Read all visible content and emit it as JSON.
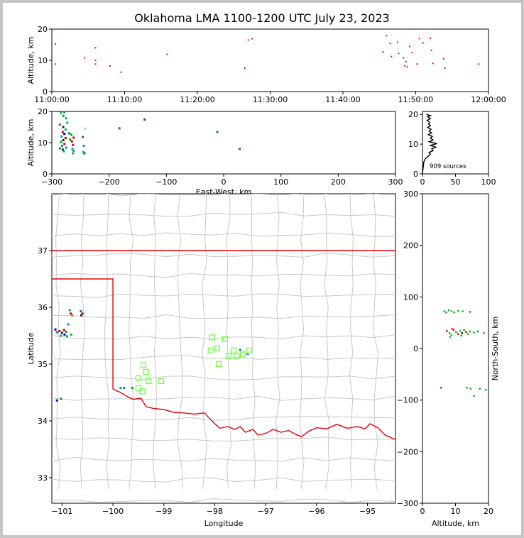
{
  "title": "Oklahoma LMA 1100-1200 UTC July 23, 2023",
  "colors": {
    "state_border": "#e8000b",
    "county_lines": "#c8c8c8",
    "station": "#66ff33",
    "histogram": "#000000"
  },
  "chart_data": [
    {
      "id": "time-altitude",
      "type": "scatter",
      "ylabel": "Altitude, km",
      "xlim": [
        "11:00:00",
        "12:00:00"
      ],
      "ylim": [
        0,
        20
      ],
      "xticks": [
        "11:00:00",
        "11:10:00",
        "11:20:00",
        "11:30:00",
        "11:40:00",
        "11:50:00",
        "12:00:00"
      ],
      "yticks": [
        "0",
        "10",
        "20"
      ],
      "points": [
        {
          "t": "11:00:30",
          "alt": 15.2,
          "color": "#e0007a"
        },
        {
          "t": "11:00:30",
          "alt": 8.8,
          "color": "#e0007a"
        },
        {
          "t": "11:04:30",
          "alt": 10.8,
          "color": "#e0007a"
        },
        {
          "t": "11:06:00",
          "alt": 14.0,
          "color": "#e0007a"
        },
        {
          "t": "11:06:00",
          "alt": 10.0,
          "color": "#e0007a"
        },
        {
          "t": "11:06:00",
          "alt": 8.8,
          "color": "#e0007a"
        },
        {
          "t": "11:08:00",
          "alt": 8.2,
          "color": "#e0007a"
        },
        {
          "t": "11:09:30",
          "alt": 6.2,
          "color": "#e0007a"
        },
        {
          "t": "11:15:50",
          "alt": 11.9,
          "color": "#e0007a"
        },
        {
          "t": "11:26:30",
          "alt": 7.5,
          "color": "#e0007a"
        },
        {
          "t": "11:27:00",
          "alt": 16.5,
          "color": "#e0007a"
        },
        {
          "t": "11:27:30",
          "alt": 16.9,
          "color": "#e0007a"
        },
        {
          "t": "11:45:30",
          "alt": 12.7,
          "color": "#e0007a"
        },
        {
          "t": "11:46:00",
          "alt": 17.9,
          "color": "#e0007a"
        },
        {
          "t": "11:46:30",
          "alt": 15.4,
          "color": "#e0007a"
        },
        {
          "t": "11:46:40",
          "alt": 11.2,
          "color": "#e0007a"
        },
        {
          "t": "11:47:30",
          "alt": 15.8,
          "color": "#e0007a"
        },
        {
          "t": "11:47:40",
          "alt": 12.2,
          "color": "#e0007a"
        },
        {
          "t": "11:48:20",
          "alt": 10.8,
          "color": "#e0007a"
        },
        {
          "t": "11:48:30",
          "alt": 8.2,
          "color": "#e0007a"
        },
        {
          "t": "11:48:40",
          "alt": 9.6,
          "color": "#e0007a"
        },
        {
          "t": "11:48:50",
          "alt": 7.9,
          "color": "#e0007a"
        },
        {
          "t": "11:49:10",
          "alt": 14.4,
          "color": "#e0007a"
        },
        {
          "t": "11:49:30",
          "alt": 12.5,
          "color": "#e0007a"
        },
        {
          "t": "11:50:10",
          "alt": 8.8,
          "color": "#e0007a"
        },
        {
          "t": "11:50:30",
          "alt": 17.0,
          "color": "#e0007a"
        },
        {
          "t": "11:51:00",
          "alt": 15.6,
          "color": "#e0007a"
        },
        {
          "t": "11:52:00",
          "alt": 17.1,
          "color": "#e0007a"
        },
        {
          "t": "11:52:10",
          "alt": 13.2,
          "color": "#e0007a"
        },
        {
          "t": "11:52:20",
          "alt": 9.0,
          "color": "#e0007a"
        },
        {
          "t": "11:53:50",
          "alt": 10.5,
          "color": "#e0007a"
        },
        {
          "t": "11:54:00",
          "alt": 7.5,
          "color": "#e0007a"
        },
        {
          "t": "11:58:40",
          "alt": 8.8,
          "color": "#e0007a"
        }
      ]
    },
    {
      "id": "east-west-altitude",
      "type": "scatter",
      "xlabel": "East-West, km",
      "ylabel": "Altitude, km",
      "xlim": [
        -300,
        300
      ],
      "ylim": [
        0,
        20
      ],
      "xticks": [
        "-300",
        "-200",
        "-100",
        "0",
        "100",
        "200",
        "300"
      ],
      "yticks": [
        "0",
        "10",
        "20"
      ],
      "points": [
        {
          "x": -284,
          "alt": 19.5,
          "color": "#00b050"
        },
        {
          "x": -280,
          "alt": 18.6,
          "color": "#00a000"
        },
        {
          "x": -278,
          "alt": 19.8,
          "color": "#008070"
        },
        {
          "x": -275,
          "alt": 17.8,
          "color": "#0090c0"
        },
        {
          "x": -273,
          "alt": 16.4,
          "color": "#00a050"
        },
        {
          "x": -286,
          "alt": 15.8,
          "color": "#008080"
        },
        {
          "x": -280,
          "alt": 15.0,
          "color": "#202020"
        },
        {
          "x": -276,
          "alt": 14.2,
          "color": "#00b050"
        },
        {
          "x": -281,
          "alt": 13.4,
          "color": "#d00000"
        },
        {
          "x": -278,
          "alt": 12.8,
          "color": "#0000c0"
        },
        {
          "x": -283,
          "alt": 12.0,
          "color": "#00a0a0"
        },
        {
          "x": -276,
          "alt": 11.5,
          "color": "#c00000"
        },
        {
          "x": -280,
          "alt": 10.8,
          "color": "#202020"
        },
        {
          "x": -284,
          "alt": 10.2,
          "color": "#00a000"
        },
        {
          "x": -278,
          "alt": 9.6,
          "color": "#d00000"
        },
        {
          "x": -282,
          "alt": 9.0,
          "color": "#008080"
        },
        {
          "x": -275,
          "alt": 8.4,
          "color": "#00b050"
        },
        {
          "x": -281,
          "alt": 7.8,
          "color": "#202020"
        },
        {
          "x": -279,
          "alt": 7.2,
          "color": "#00a0a0"
        },
        {
          "x": -286,
          "alt": 8.2,
          "color": "#00a000"
        },
        {
          "x": -270,
          "alt": 13.0,
          "color": "#008080"
        },
        {
          "x": -268,
          "alt": 11.0,
          "color": "#00a000"
        },
        {
          "x": -265,
          "alt": 10.4,
          "color": "#d00000"
        },
        {
          "x": -263,
          "alt": 9.2,
          "color": "#e0007a"
        },
        {
          "x": -264,
          "alt": 8.0,
          "color": "#00a0a0"
        },
        {
          "x": -262,
          "alt": 11.6,
          "color": "#d00000"
        },
        {
          "x": -266,
          "alt": 12.6,
          "color": "#00a000"
        },
        {
          "x": -262,
          "alt": 7.4,
          "color": "#00b050"
        },
        {
          "x": -263,
          "alt": 6.6,
          "color": "#00a0a0"
        },
        {
          "x": -246,
          "alt": 11.8,
          "color": "#008080"
        },
        {
          "x": -244,
          "alt": 9.0,
          "color": "#0090c0"
        },
        {
          "x": -243,
          "alt": 6.6,
          "color": "#006060"
        },
        {
          "x": -245,
          "alt": 7.0,
          "color": "#00a0a0"
        },
        {
          "x": -242,
          "alt": 14.5,
          "color": "#c0c0c0"
        },
        {
          "x": -182,
          "alt": 14.6,
          "color": "#007070"
        },
        {
          "x": -138,
          "alt": 17.4,
          "color": "#006060"
        },
        {
          "x": -11,
          "alt": 13.4,
          "color": "#008070"
        },
        {
          "x": 28,
          "alt": 8.0,
          "color": "#007070"
        }
      ]
    },
    {
      "id": "altitude-histogram",
      "type": "line",
      "annotation": "909 sources",
      "xlim": [
        0,
        100
      ],
      "ylim": [
        0,
        21
      ],
      "xticks": [
        "0",
        "50",
        "100"
      ],
      "yticks": [
        "0",
        "10",
        "20"
      ],
      "points": [
        {
          "count": 0,
          "alt": 0
        },
        {
          "count": 1,
          "alt": 2
        },
        {
          "count": 2,
          "alt": 4
        },
        {
          "count": 4,
          "alt": 5
        },
        {
          "count": 8,
          "alt": 5.8
        },
        {
          "count": 12,
          "alt": 6.6
        },
        {
          "count": 10,
          "alt": 7.2
        },
        {
          "count": 16,
          "alt": 7.8
        },
        {
          "count": 14,
          "alt": 8.4
        },
        {
          "count": 20,
          "alt": 9.0
        },
        {
          "count": 12,
          "alt": 9.6
        },
        {
          "count": 22,
          "alt": 10.2
        },
        {
          "count": 10,
          "alt": 10.8
        },
        {
          "count": 16,
          "alt": 11.4
        },
        {
          "count": 12,
          "alt": 12.0
        },
        {
          "count": 15,
          "alt": 12.6
        },
        {
          "count": 9,
          "alt": 13.2
        },
        {
          "count": 14,
          "alt": 13.8
        },
        {
          "count": 10,
          "alt": 14.4
        },
        {
          "count": 13,
          "alt": 15.0
        },
        {
          "count": 8,
          "alt": 15.6
        },
        {
          "count": 12,
          "alt": 16.2
        },
        {
          "count": 9,
          "alt": 16.8
        },
        {
          "count": 11,
          "alt": 17.4
        },
        {
          "count": 7,
          "alt": 18.0
        },
        {
          "count": 12,
          "alt": 18.6
        },
        {
          "count": 8,
          "alt": 19.2
        },
        {
          "count": 12,
          "alt": 19.6
        },
        {
          "count": 6,
          "alt": 20.0
        }
      ]
    },
    {
      "id": "plan-view",
      "type": "scatter",
      "xlabel": "Longitude",
      "ylabel": "Latitude",
      "xlim": [
        -101.2,
        -94.45
      ],
      "ylim": [
        32.55,
        38.0
      ],
      "xticks": [
        "−101",
        "−100",
        "−99",
        "−98",
        "−97",
        "−96",
        "−95"
      ],
      "yticks": [
        "33",
        "34",
        "35",
        "36",
        "37"
      ],
      "stations": [
        {
          "lon": -98.05,
          "lat": 35.47
        },
        {
          "lon": -97.8,
          "lat": 35.44
        },
        {
          "lon": -97.95,
          "lat": 35.28
        },
        {
          "lon": -98.08,
          "lat": 35.24
        },
        {
          "lon": -97.63,
          "lat": 35.24
        },
        {
          "lon": -97.73,
          "lat": 35.14
        },
        {
          "lon": -97.45,
          "lat": 35.17
        },
        {
          "lon": -97.32,
          "lat": 35.24
        },
        {
          "lon": -97.92,
          "lat": 35.0
        },
        {
          "lon": -97.57,
          "lat": 35.14
        },
        {
          "lon": -99.4,
          "lat": 34.98
        },
        {
          "lon": -99.35,
          "lat": 34.86
        },
        {
          "lon": -99.5,
          "lat": 34.75
        },
        {
          "lon": -99.3,
          "lat": 34.7
        },
        {
          "lon": -99.5,
          "lat": 34.58
        },
        {
          "lon": -99.42,
          "lat": 34.52
        },
        {
          "lon": -99.05,
          "lat": 34.7
        }
      ],
      "points": [
        {
          "lon": -101.05,
          "lat": 35.58,
          "color": "#d00000"
        },
        {
          "lon": -101.0,
          "lat": 35.55,
          "color": "#202020"
        },
        {
          "lon": -100.95,
          "lat": 35.52,
          "color": "#0000c0"
        },
        {
          "lon": -101.1,
          "lat": 35.56,
          "color": "#008080"
        },
        {
          "lon": -100.92,
          "lat": 35.57,
          "color": "#00a000"
        },
        {
          "lon": -101.02,
          "lat": 35.5,
          "color": "#00a0a0"
        },
        {
          "lon": -100.9,
          "lat": 35.49,
          "color": "#0090c0"
        },
        {
          "lon": -100.96,
          "lat": 35.6,
          "color": "#c00000"
        },
        {
          "lon": -101.13,
          "lat": 35.61,
          "color": "#0000c0"
        },
        {
          "lon": -100.82,
          "lat": 35.52,
          "color": "#00b050"
        },
        {
          "lon": -100.85,
          "lat": 35.95,
          "color": "#00b050"
        },
        {
          "lon": -100.83,
          "lat": 35.89,
          "color": "#d00000"
        },
        {
          "lon": -100.8,
          "lat": 35.86,
          "color": "#e06000"
        },
        {
          "lon": -100.63,
          "lat": 35.93,
          "color": "#008080"
        },
        {
          "lon": -100.6,
          "lat": 35.89,
          "color": "#d00000"
        },
        {
          "lon": -100.62,
          "lat": 35.86,
          "color": "#202020"
        },
        {
          "lon": -100.88,
          "lat": 35.7,
          "color": "#0090c0"
        },
        {
          "lon": -99.85,
          "lat": 34.58,
          "color": "#00a0a0"
        },
        {
          "lon": -99.78,
          "lat": 34.58,
          "color": "#008080"
        },
        {
          "lon": -99.62,
          "lat": 34.58,
          "color": "#00a000"
        },
        {
          "lon": -101.1,
          "lat": 34.36,
          "color": "#0000c0"
        },
        {
          "lon": -101.02,
          "lat": 34.39,
          "color": "#008080"
        },
        {
          "lon": -97.35,
          "lat": 35.18,
          "color": "#0090c0"
        },
        {
          "lon": -97.5,
          "lat": 35.25,
          "color": "#008080"
        }
      ]
    },
    {
      "id": "altitude-north-south",
      "type": "scatter",
      "xlabel": "Altitude, km",
      "ylabel": "North-South, km",
      "xlim": [
        0,
        20
      ],
      "ylim": [
        -300,
        300
      ],
      "xticks": [
        "0",
        "10",
        "20"
      ],
      "yticks": [
        "−300",
        "−200",
        "−100",
        "0",
        "100",
        "200",
        "300"
      ],
      "points": [
        {
          "alt": 6.6,
          "y": 72,
          "color": "#00c000"
        },
        {
          "alt": 7.2,
          "y": 70,
          "color": "#00a000"
        },
        {
          "alt": 8.0,
          "y": 74,
          "color": "#00b050"
        },
        {
          "alt": 8.8,
          "y": 72,
          "color": "#00c000"
        },
        {
          "alt": 9.6,
          "y": 70,
          "color": "#00a000"
        },
        {
          "alt": 10.8,
          "y": 73,
          "color": "#00c000"
        },
        {
          "alt": 12.2,
          "y": 72,
          "color": "#00b050"
        },
        {
          "alt": 14.4,
          "y": 71,
          "color": "#00a000"
        },
        {
          "alt": 7.4,
          "y": 34,
          "color": "#d00000"
        },
        {
          "alt": 8.2,
          "y": 30,
          "color": "#00a000"
        },
        {
          "alt": 8.8,
          "y": 26,
          "color": "#00c000"
        },
        {
          "alt": 9.4,
          "y": 36,
          "color": "#d00000"
        },
        {
          "alt": 10.2,
          "y": 32,
          "color": "#00a000"
        },
        {
          "alt": 10.8,
          "y": 28,
          "color": "#d00000"
        },
        {
          "alt": 11.4,
          "y": 34,
          "color": "#00c000"
        },
        {
          "alt": 12.0,
          "y": 30,
          "color": "#202020"
        },
        {
          "alt": 12.6,
          "y": 36,
          "color": "#00a000"
        },
        {
          "alt": 13.2,
          "y": 32,
          "color": "#d00000"
        },
        {
          "alt": 13.8,
          "y": 28,
          "color": "#00c000"
        },
        {
          "alt": 14.4,
          "y": 33,
          "color": "#00a000"
        },
        {
          "alt": 15.6,
          "y": 31,
          "color": "#00c000"
        },
        {
          "alt": 16.8,
          "y": 33,
          "color": "#00a000"
        },
        {
          "alt": 18.6,
          "y": 30,
          "color": "#00c000"
        },
        {
          "alt": 9.0,
          "y": 38,
          "color": "#e0007a"
        },
        {
          "alt": 11.8,
          "y": 25,
          "color": "#00a000"
        },
        {
          "alt": 8.4,
          "y": 22,
          "color": "#00c000"
        },
        {
          "alt": 13.4,
          "y": -76,
          "color": "#00a000"
        },
        {
          "alt": 14.6,
          "y": -78,
          "color": "#00c000"
        },
        {
          "alt": 17.4,
          "y": -78,
          "color": "#00a000"
        },
        {
          "alt": 19.2,
          "y": -80,
          "color": "#00b050"
        },
        {
          "alt": 15.6,
          "y": -92,
          "color": "#00c000"
        },
        {
          "alt": 5.6,
          "y": -76,
          "color": "#006060"
        }
      ]
    }
  ]
}
